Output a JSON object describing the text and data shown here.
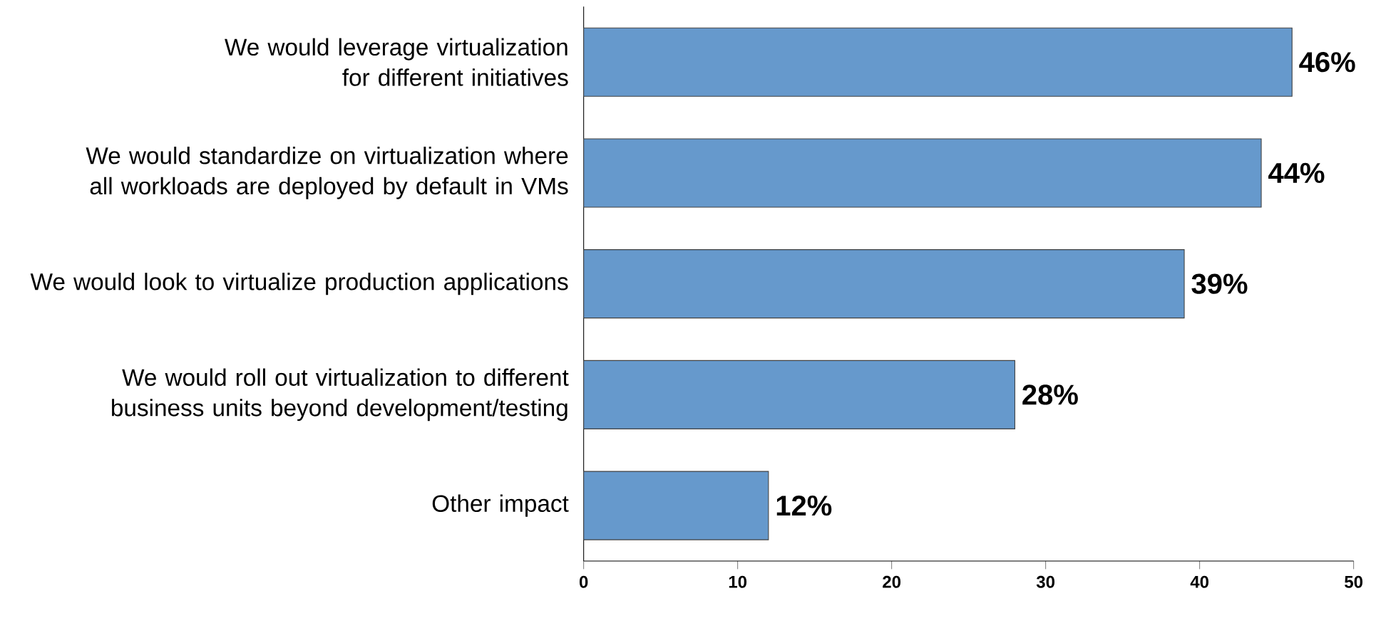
{
  "chart_data": {
    "type": "bar",
    "orientation": "horizontal",
    "categories": [
      "We would leverage virtualization for different initiatives",
      "We would standardize on virtualization where all workloads are deployed by default in VMs",
      "We would look to virtualize production applications",
      "We would roll out virtualization to different business units beyond development/testing",
      "Other impact"
    ],
    "values": [
      46,
      44,
      39,
      28,
      12
    ],
    "value_labels": [
      "46%",
      "44%",
      "39%",
      "28%",
      "12%"
    ],
    "color": "#6699cc",
    "xlim": [
      0,
      50
    ],
    "xticks": [
      0,
      10,
      20,
      30,
      40,
      50
    ],
    "grid": false
  }
}
